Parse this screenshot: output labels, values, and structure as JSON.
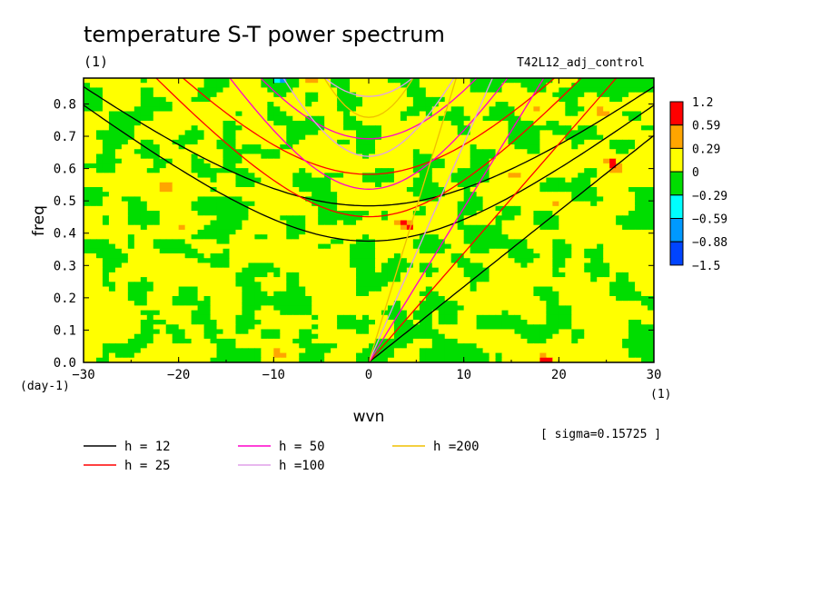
{
  "chart_data": {
    "type": "heatmap",
    "title": "temperature S-T power spectrum",
    "subtitle": "(1)",
    "run_label": "T42L12_adj_control",
    "xlabel": "wvn",
    "ylabel": "freq",
    "x_unit": "(1)",
    "y_unit": "(day-1)",
    "xlim": [
      -30,
      30
    ],
    "ylim": [
      0.0,
      0.88
    ],
    "x_ticks": [
      -30,
      -20,
      -10,
      0,
      10,
      20,
      30
    ],
    "x_tick_labels": [
      "−30",
      "−20",
      "−10",
      "0",
      "10",
      "20",
      "30"
    ],
    "y_ticks": [
      0.0,
      0.1,
      0.2,
      0.3,
      0.4,
      0.5,
      0.6,
      0.7,
      0.8
    ],
    "y_tick_labels": [
      "0.0",
      "0.1",
      "0.2",
      "0.3",
      "0.4",
      "0.5",
      "0.6",
      "0.7",
      "0.8"
    ],
    "sigma_note": "[ sigma=0.15725 ]",
    "colorbar": {
      "labels": [
        "1.2",
        "0.59",
        "0.29",
        "0",
        "−0.29",
        "−0.59",
        "−0.88",
        "−1.5"
      ],
      "levels": [
        1.2,
        0.59,
        0.29,
        0,
        -0.29,
        -0.59,
        -0.88,
        -1.5
      ],
      "colors": [
        "#ff0000",
        "#ffa500",
        "#ffff00",
        "#00dd00",
        "#00ffff",
        "#0099ff",
        "#0044ff"
      ]
    },
    "field_description_values": {
      "dominant_levels": [
        0.29,
        0,
        -0.29
      ],
      "grid_nx": 61,
      "grid_ny": 45
    },
    "series": [
      {
        "name": "h = 12",
        "color": "#000000",
        "h": 12
      },
      {
        "name": "h = 25",
        "color": "#ff0000",
        "h": 25
      },
      {
        "name": "h = 50",
        "color": "#ff00cc",
        "h": 50
      },
      {
        "name": "h =100",
        "color": "#e0a0e8",
        "h": 100
      },
      {
        "name": "h =200",
        "color": "#f0c000",
        "h": 200
      }
    ]
  }
}
